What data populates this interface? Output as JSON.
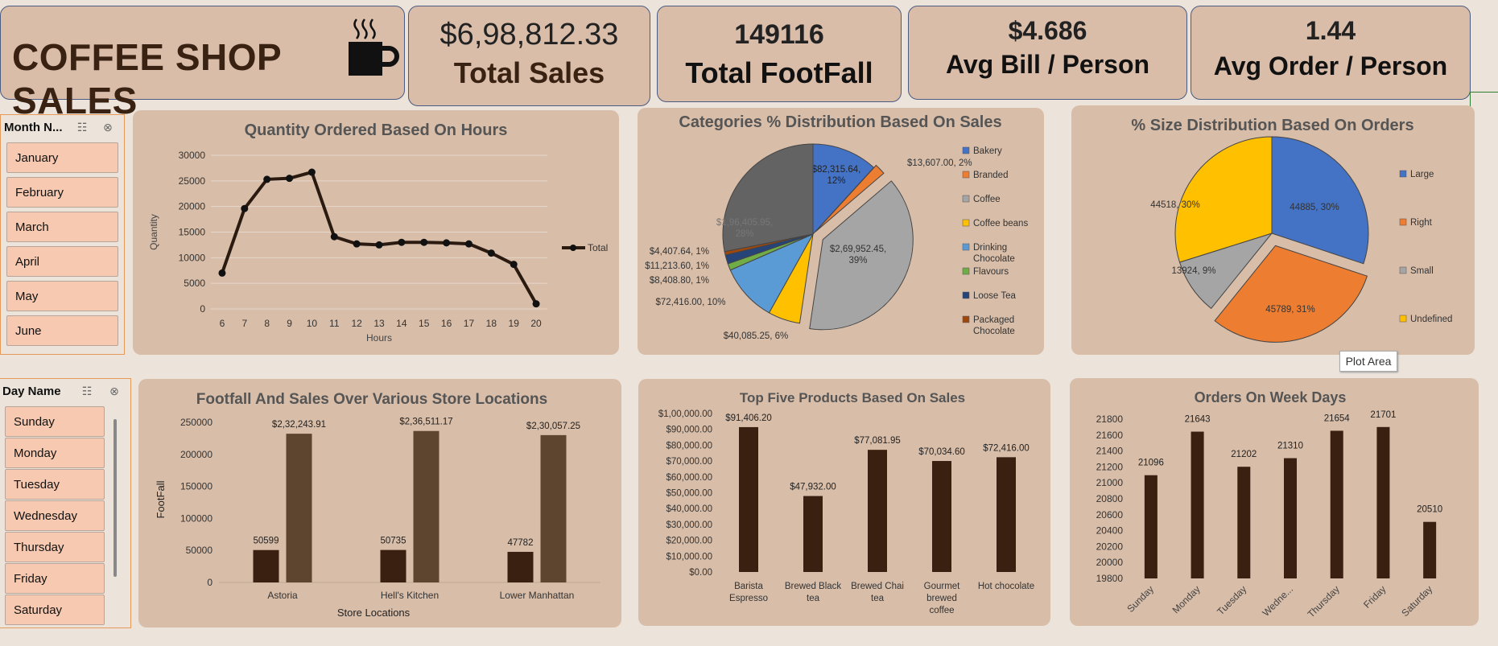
{
  "header": {
    "title": "COFFEE SHOP SALES",
    "total_sales_value": "$6,98,812.33",
    "total_sales_label": "Total Sales",
    "footfall_value": "149116",
    "footfall_label": "Total FootFall",
    "avg_bill_value": "$4.686",
    "avg_bill_label": "Avg Bill / Person",
    "avg_order_value": "1.44",
    "avg_order_label": "Avg Order / Person"
  },
  "month_slicer": {
    "title": "Month N...",
    "items": [
      "January",
      "February",
      "March",
      "April",
      "May",
      "June"
    ]
  },
  "day_slicer": {
    "title": "Day Name",
    "items": [
      "Sunday",
      "Monday",
      "Tuesday",
      "Wednesday",
      "Thursday",
      "Friday",
      "Saturday"
    ]
  },
  "tooltip": "Plot Area",
  "colors": {
    "card_bg": "#d9bda9",
    "line": "#2a1a10",
    "bar_dark": "#3a2010",
    "bar_light": "#5e4530",
    "slicer_btn": "#f6c9b0"
  },
  "chart_data": [
    {
      "type": "line",
      "title": "Quantity  Ordered Based On Hours",
      "xlabel": "Hours",
      "ylabel": "Quantity",
      "ylim": [
        0,
        30000
      ],
      "yticks": [
        "30000",
        "25000",
        "20000",
        "15000",
        "10000",
        "5000",
        "0"
      ],
      "categories": [
        "6",
        "7",
        "8",
        "9",
        "10",
        "11",
        "12",
        "13",
        "14",
        "15",
        "16",
        "17",
        "18",
        "19",
        "20"
      ],
      "series": [
        {
          "name": "Total",
          "values": [
            7000,
            19600,
            25300,
            25500,
            26700,
            14100,
            12700,
            12500,
            13000,
            13000,
            12900,
            12700,
            10900,
            8700,
            1000
          ]
        }
      ],
      "legend": "right"
    },
    {
      "type": "pie",
      "title": "Categories  %  Distribution Based On Sales",
      "legend": "right",
      "slices": [
        {
          "name": "Bakery",
          "value": 82315.64,
          "label": "$82,315.64, 12%",
          "color": "#4472c4"
        },
        {
          "name": "Branded",
          "value": 13607.0,
          "label": "$13,607.00, 2%",
          "color": "#ed7d31"
        },
        {
          "name": "Coffee",
          "value": 269952.45,
          "label": "$2,69,952.45, 39%",
          "color": "#a5a5a5"
        },
        {
          "name": "Coffee beans",
          "value": 40085.25,
          "label": "$40,085.25, 6%",
          "color": "#ffc000"
        },
        {
          "name": "Drinking Chocolate",
          "value": 72416.0,
          "label": "$72,416.00, 10%",
          "color": "#5b9bd5"
        },
        {
          "name": "Flavours",
          "value": 8408.8,
          "label": "$8,408.80, 1%",
          "color": "#70ad47"
        },
        {
          "name": "Loose Tea",
          "value": 11213.6,
          "label": "$11,213.60, 1%",
          "color": "#264478"
        },
        {
          "name": "Packaged Chocolate",
          "value": 4407.64,
          "label": "$4,407.64, 1%",
          "color": "#9e480e"
        },
        {
          "name": "",
          "value": 196405.95,
          "label": "$1,96,405.95, 28%",
          "color": "#636363"
        }
      ]
    },
    {
      "type": "pie",
      "title": "%  Size Distribution Based On Orders",
      "legend": "right",
      "slices": [
        {
          "name": "Large",
          "value": 44885,
          "label": "44885, 30%",
          "color": "#4472c4"
        },
        {
          "name": "Right",
          "value": 45789,
          "label": "45789, 31%",
          "color": "#ed7d31"
        },
        {
          "name": "Small",
          "value": 13924,
          "label": "13924, 9%",
          "color": "#a5a5a5"
        },
        {
          "name": "Undefined",
          "value": 44518,
          "label": "44518, 30%",
          "color": "#ffc000"
        }
      ]
    },
    {
      "type": "bar",
      "title": "Footfall And Sales  Over Various Store Locations",
      "xlabel": "Store Locations",
      "ylabel": "FootFall",
      "ylim": [
        0,
        250000
      ],
      "yticks": [
        "250000",
        "200000",
        "150000",
        "100000",
        "50000",
        "0"
      ],
      "categories": [
        "Astoria",
        "Hell's Kitchen",
        "Lower Manhattan"
      ],
      "series": [
        {
          "values": [
            50599,
            50735,
            47782
          ],
          "labels": [
            "50599",
            "50735",
            "47782"
          ]
        },
        {
          "values": [
            232243.91,
            236511.17,
            230057.25
          ],
          "labels": [
            "$2,32,243.91",
            "$2,36,511.17",
            "$2,30,057.25"
          ]
        }
      ]
    },
    {
      "type": "bar",
      "title": "Top Five Products Based On Sales",
      "ylim": [
        0,
        100000
      ],
      "yticks": [
        "$1,00,000.00",
        "$90,000.00",
        "$80,000.00",
        "$70,000.00",
        "$60,000.00",
        "$50,000.00",
        "$40,000.00",
        "$30,000.00",
        "$20,000.00",
        "$10,000.00",
        "$0.00"
      ],
      "categories": [
        [
          "Barista",
          "Espresso"
        ],
        [
          "Brewed Black",
          "tea"
        ],
        [
          "Brewed Chai",
          "tea"
        ],
        [
          "Gourmet",
          "brewed",
          "coffee"
        ],
        [
          "Hot chocolate"
        ]
      ],
      "values": [
        91406.2,
        47932.0,
        77081.95,
        70034.6,
        72416.0
      ],
      "labels": [
        "$91,406.20",
        "$47,932.00",
        "$77,081.95",
        "$70,034.60",
        "$72,416.00"
      ]
    },
    {
      "type": "bar",
      "title": "Orders On Week Days",
      "ylim": [
        19800,
        21800
      ],
      "yticks": [
        "21800",
        "21600",
        "21400",
        "21200",
        "21000",
        "20800",
        "20600",
        "20400",
        "20200",
        "20000",
        "19800"
      ],
      "categories": [
        "Sunday",
        "Monday",
        "Tuesday",
        "Wedne...",
        "Thursday",
        "Friday",
        "Saturday"
      ],
      "values": [
        21096,
        21643,
        21202,
        21310,
        21654,
        21701,
        20510
      ],
      "labels": [
        "21096",
        "21643",
        "21202",
        "21310",
        "21654",
        "21701",
        "20510"
      ]
    }
  ]
}
